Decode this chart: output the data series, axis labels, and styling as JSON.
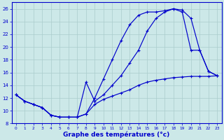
{
  "xlabel": "Graphe des températures (°c)",
  "xlim": [
    -0.5,
    23.5
  ],
  "ylim": [
    8,
    27
  ],
  "yticks": [
    8,
    10,
    12,
    14,
    16,
    18,
    20,
    22,
    24,
    26
  ],
  "x_ticks": [
    0,
    1,
    2,
    3,
    4,
    5,
    6,
    7,
    8,
    9,
    10,
    11,
    12,
    13,
    14,
    15,
    16,
    17,
    18,
    19,
    20,
    21,
    22,
    23
  ],
  "bg_color": "#cce8e8",
  "grid_color": "#aacccc",
  "line_color": "#0000cc",
  "line1_x": [
    0,
    1,
    2,
    3,
    4,
    5,
    6,
    7,
    8,
    9,
    10,
    11,
    12,
    13,
    14,
    15,
    16,
    17,
    18,
    19,
    20,
    21,
    22,
    23
  ],
  "line1_y": [
    12.5,
    11.5,
    11.0,
    10.5,
    9.3,
    9.0,
    9.0,
    9.0,
    9.5,
    11.0,
    11.8,
    12.3,
    12.8,
    13.3,
    14.0,
    14.5,
    14.8,
    15.0,
    15.2,
    15.3,
    15.4,
    15.4,
    15.4,
    15.5
  ],
  "line2_x": [
    0,
    1,
    2,
    3,
    4,
    5,
    6,
    7,
    8,
    9,
    10,
    11,
    12,
    13,
    14,
    15,
    16,
    17,
    18,
    19,
    20,
    21,
    22,
    23
  ],
  "line2_y": [
    12.5,
    11.5,
    11.0,
    10.5,
    9.3,
    9.0,
    9.0,
    9.0,
    14.5,
    11.5,
    12.5,
    14.0,
    15.5,
    17.5,
    19.5,
    22.5,
    24.5,
    25.5,
    26.0,
    25.8,
    24.5,
    19.5,
    16.2,
    15.5
  ],
  "line3_x": [
    0,
    1,
    2,
    3,
    4,
    5,
    6,
    7,
    8,
    9,
    10,
    11,
    12,
    13,
    14,
    15,
    16,
    17,
    18,
    19,
    20,
    21,
    22,
    23
  ],
  "line3_y": [
    12.5,
    11.5,
    11.0,
    10.5,
    9.3,
    9.0,
    9.0,
    9.0,
    9.5,
    12.0,
    15.0,
    18.0,
    21.0,
    23.5,
    25.0,
    25.5,
    25.5,
    25.7,
    26.0,
    25.5,
    19.5,
    19.5,
    16.2,
    15.5
  ]
}
